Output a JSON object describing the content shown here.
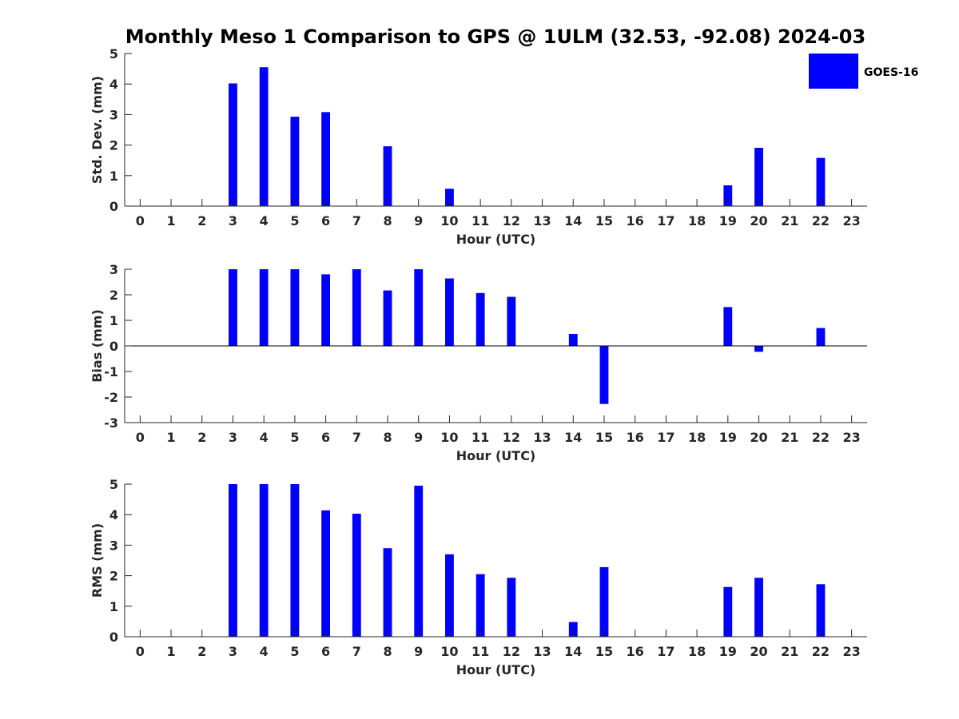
{
  "title": "Monthly Meso 1 Comparison to GPS @ 1ULM (32.53, -92.08) 2024-03",
  "legend": {
    "label": "GOES-16",
    "color": "#0000ff"
  },
  "colors": {
    "bar": "#0000ff",
    "axis": "#262626",
    "zero_line": "#000000"
  },
  "chart_data": [
    {
      "type": "bar",
      "xlabel": "Hour (UTC)",
      "ylabel": "Std. Dev. (mm)",
      "ylim": [
        0,
        5
      ],
      "yticks": [
        0,
        1,
        2,
        3,
        4,
        5
      ],
      "categories": [
        "0",
        "1",
        "2",
        "3",
        "4",
        "5",
        "6",
        "7",
        "8",
        "9",
        "10",
        "11",
        "12",
        "13",
        "14",
        "15",
        "16",
        "17",
        "18",
        "19",
        "20",
        "21",
        "22",
        "23"
      ],
      "series": [
        {
          "name": "GOES-16",
          "values": [
            null,
            null,
            null,
            4.02,
            4.55,
            2.93,
            3.08,
            null,
            1.96,
            null,
            0.57,
            null,
            null,
            null,
            null,
            null,
            null,
            null,
            null,
            0.68,
            1.91,
            null,
            1.58,
            null
          ]
        }
      ],
      "grid": false,
      "legend": "top-right"
    },
    {
      "type": "bar",
      "xlabel": "Hour (UTC)",
      "ylabel": "Bias (mm)",
      "ylim": [
        -3,
        3
      ],
      "yticks": [
        -3,
        -2,
        -1,
        0,
        1,
        2,
        3
      ],
      "categories": [
        "0",
        "1",
        "2",
        "3",
        "4",
        "5",
        "6",
        "7",
        "8",
        "9",
        "10",
        "11",
        "12",
        "13",
        "14",
        "15",
        "16",
        "17",
        "18",
        "19",
        "20",
        "21",
        "22",
        "23"
      ],
      "series": [
        {
          "name": "GOES-16",
          "values": [
            null,
            null,
            null,
            3.0,
            3.0,
            3.0,
            2.8,
            3.0,
            2.17,
            3.0,
            2.64,
            2.07,
            1.92,
            null,
            0.47,
            -2.27,
            null,
            null,
            null,
            1.52,
            -0.23,
            null,
            0.7,
            null
          ]
        }
      ],
      "grid": false
    },
    {
      "type": "bar",
      "xlabel": "Hour (UTC)",
      "ylabel": "RMS (mm)",
      "ylim": [
        0,
        5
      ],
      "yticks": [
        0,
        1,
        2,
        3,
        4,
        5
      ],
      "categories": [
        "0",
        "1",
        "2",
        "3",
        "4",
        "5",
        "6",
        "7",
        "8",
        "9",
        "10",
        "11",
        "12",
        "13",
        "14",
        "15",
        "16",
        "17",
        "18",
        "19",
        "20",
        "21",
        "22",
        "23"
      ],
      "series": [
        {
          "name": "GOES-16",
          "values": [
            null,
            null,
            null,
            5.0,
            5.0,
            5.0,
            4.14,
            4.03,
            2.9,
            4.95,
            2.7,
            2.05,
            1.93,
            null,
            0.48,
            2.28,
            null,
            null,
            null,
            1.63,
            1.93,
            null,
            1.72,
            null
          ]
        }
      ],
      "grid": false
    }
  ]
}
